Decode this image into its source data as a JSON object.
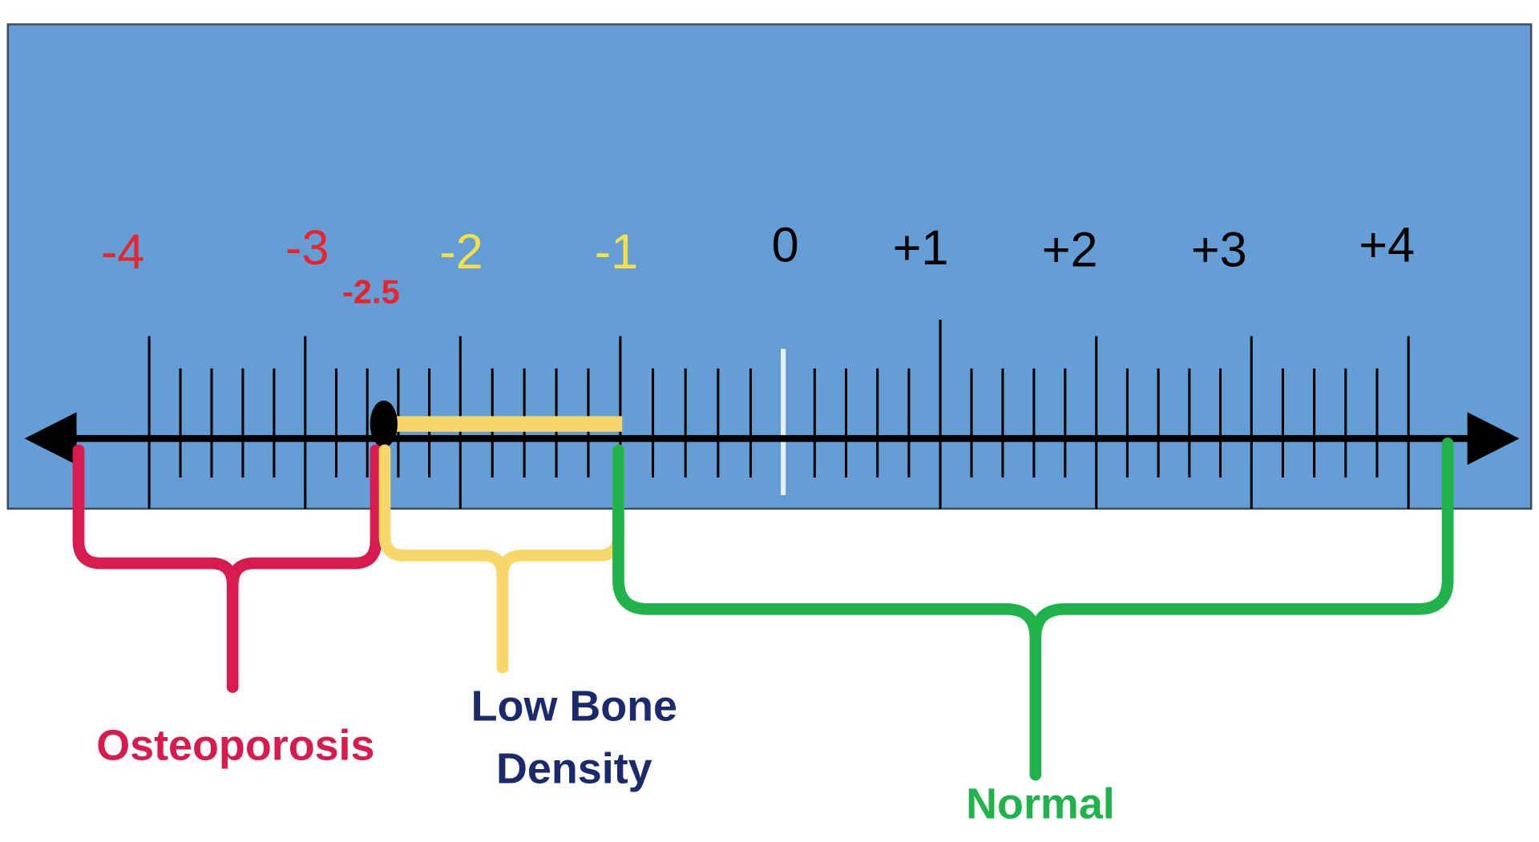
{
  "scale": {
    "labels": [
      "-4",
      "-3",
      "-2",
      "-1",
      "0",
      "+1",
      "+2",
      "+3",
      "+4"
    ],
    "marker_label": "-2.5"
  },
  "ranges": [
    {
      "label": "Osteoporosis"
    },
    {
      "label": "Low Bone"
    },
    {
      "label": "Density"
    },
    {
      "label": "Normal"
    }
  ]
}
